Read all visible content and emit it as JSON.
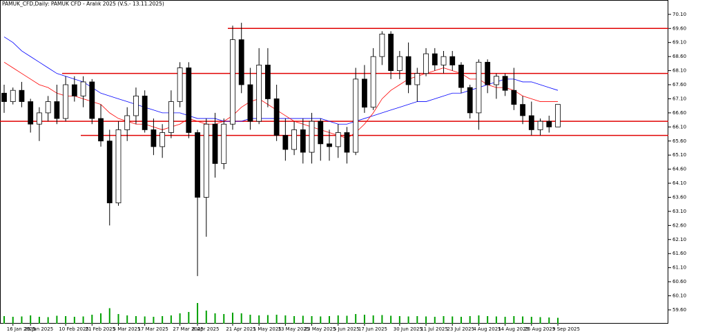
{
  "chart_data": {
    "type": "candlestick",
    "title": "PAMUK_CFD,Daily: PAMUK CFD - Aralık 2025 (V.S.- 13.11.2025)",
    "categories": [
      null,
      "16 Jan 2025",
      null,
      "29 Jan 2025",
      null,
      null,
      null,
      "10 Feb 2025",
      null,
      null,
      "21 Feb 2025",
      null,
      null,
      "5 Mar 2025",
      null,
      null,
      "17 Mar 2025",
      null,
      null,
      null,
      "27 Mar 2025",
      null,
      "8 Apr 2025",
      null,
      null,
      null,
      "21 Apr 2025",
      null,
      null,
      "1 May 2025",
      null,
      null,
      "13 May 2025",
      null,
      null,
      "23 May 2025",
      null,
      null,
      "5 Jun 2025",
      null,
      null,
      "17 Jun 2025",
      null,
      null,
      null,
      "30 Jun 2025",
      null,
      null,
      "11 Jul 2025",
      null,
      null,
      "23 Jul 2025",
      null,
      null,
      "4 Aug 2025",
      null,
      null,
      "14 Aug 2025",
      null,
      null,
      "26 Aug 2025",
      null,
      null,
      "9 Sep 2025"
    ],
    "open": [
      67.3,
      67.0,
      67.4,
      67.0,
      66.2,
      66.6,
      67.0,
      66.4,
      67.6,
      67.2,
      67.7,
      66.4,
      65.6,
      63.4,
      66.0,
      66.5,
      67.2,
      66.0,
      65.4,
      65.9,
      67.0,
      68.2,
      65.9,
      63.6,
      66.2,
      64.8,
      66.2,
      69.2,
      67.6,
      66.3,
      68.3,
      67.1,
      65.8,
      65.3,
      66.0,
      65.2,
      66.3,
      65.5,
      65.4,
      65.9,
      65.2,
      67.8,
      66.8,
      68.6,
      69.4,
      68.1,
      68.6,
      67.6,
      68.0,
      68.7,
      68.3,
      68.6,
      68.3,
      67.5,
      66.6,
      68.4,
      67.6,
      67.9,
      67.4,
      66.9,
      66.5,
      66.0,
      66.3,
      66.1
    ],
    "high": [
      67.6,
      67.5,
      67.7,
      67.1,
      66.8,
      67.2,
      67.6,
      67.9,
      67.9,
      67.9,
      67.8,
      66.9,
      66.0,
      66.3,
      66.8,
      67.5,
      67.4,
      66.4,
      66.2,
      67.4,
      68.4,
      68.4,
      66.0,
      66.4,
      66.6,
      66.4,
      69.7,
      69.8,
      68.2,
      68.9,
      68.9,
      67.6,
      66.4,
      66.3,
      66.4,
      66.6,
      66.4,
      66.0,
      66.2,
      66.1,
      68.2,
      68.3,
      68.9,
      69.5,
      69.5,
      68.8,
      69.1,
      68.2,
      68.9,
      68.9,
      68.8,
      68.8,
      68.4,
      67.6,
      68.5,
      68.5,
      68.0,
      68.0,
      68.2,
      67.2,
      67.0,
      66.4,
      66.5,
      66.9
    ],
    "low": [
      66.6,
      66.9,
      66.8,
      65.9,
      65.6,
      66.3,
      66.2,
      66.3,
      67.0,
      66.8,
      66.2,
      65.4,
      62.6,
      63.3,
      65.6,
      66.2,
      65.9,
      65.1,
      65.0,
      65.7,
      66.8,
      65.7,
      60.8,
      62.2,
      64.3,
      64.6,
      66.0,
      67.3,
      66.0,
      66.2,
      66.8,
      65.6,
      64.9,
      65.1,
      64.8,
      64.8,
      64.9,
      64.9,
      65.0,
      64.8,
      65.1,
      66.6,
      66.7,
      68.3,
      67.8,
      67.8,
      67.3,
      67.0,
      67.9,
      68.1,
      68.0,
      68.1,
      67.3,
      66.4,
      66.0,
      67.3,
      67.1,
      67.2,
      66.7,
      66.2,
      65.8,
      65.8,
      65.9,
      66.1
    ],
    "close": [
      67.0,
      67.4,
      67.0,
      66.2,
      66.6,
      67.0,
      66.4,
      67.6,
      67.2,
      67.7,
      66.4,
      65.6,
      63.4,
      66.0,
      66.5,
      67.2,
      66.0,
      65.4,
      65.9,
      67.0,
      68.2,
      65.9,
      63.6,
      66.2,
      64.8,
      66.2,
      69.2,
      67.6,
      66.3,
      68.3,
      67.1,
      65.8,
      65.3,
      66.0,
      65.2,
      66.3,
      65.5,
      65.4,
      65.9,
      65.2,
      67.8,
      66.8,
      68.6,
      69.4,
      68.1,
      68.6,
      67.6,
      68.0,
      68.7,
      68.3,
      68.6,
      68.3,
      67.5,
      66.6,
      68.4,
      67.6,
      67.9,
      67.4,
      66.9,
      66.5,
      66.0,
      66.3,
      66.1,
      66.9
    ],
    "series": [
      {
        "color": "#0000ff",
        "values": [
          69.3,
          69.1,
          68.8,
          68.6,
          68.4,
          68.2,
          68.0,
          67.9,
          67.8,
          67.7,
          67.5,
          67.3,
          67.2,
          67.1,
          67.0,
          66.9,
          66.8,
          66.7,
          66.6,
          66.6,
          66.6,
          66.5,
          66.4,
          66.4,
          66.4,
          66.3,
          66.3,
          66.3,
          66.4,
          66.4,
          66.4,
          66.4,
          66.4,
          66.4,
          66.4,
          66.4,
          66.4,
          66.3,
          66.2,
          66.2,
          66.3,
          66.4,
          66.5,
          66.6,
          66.7,
          66.8,
          66.9,
          67.0,
          67.0,
          67.1,
          67.2,
          67.3,
          67.3,
          67.4,
          67.5,
          67.6,
          67.7,
          67.8,
          67.8,
          67.7,
          67.7,
          67.6,
          67.5,
          67.4
        ]
      },
      {
        "color": "#ff0000",
        "values": [
          68.4,
          68.2,
          68.0,
          67.8,
          67.6,
          67.5,
          67.3,
          67.2,
          67.2,
          67.1,
          67.0,
          66.9,
          66.6,
          66.4,
          66.3,
          66.2,
          66.2,
          66.1,
          66.0,
          66.1,
          66.2,
          66.4,
          66.3,
          66.2,
          66.2,
          66.3,
          66.5,
          66.8,
          67.0,
          67.1,
          66.9,
          66.7,
          66.5,
          66.3,
          66.2,
          66.1,
          66.0,
          65.9,
          65.8,
          65.7,
          65.9,
          66.2,
          66.6,
          67.1,
          67.4,
          67.6,
          67.8,
          67.9,
          68.0,
          68.1,
          68.2,
          68.1,
          68.0,
          67.8,
          67.8,
          67.6,
          67.5,
          67.5,
          67.4,
          67.2,
          67.1,
          67.0,
          67.0,
          67.0
        ]
      }
    ],
    "levels": [
      69.6,
      68.0,
      66.3,
      65.8
    ],
    "level_color": "#e00000",
    "volume": [
      22,
      20,
      21,
      24,
      20,
      19,
      23,
      22,
      20,
      21,
      26,
      30,
      45,
      28,
      24,
      22,
      21,
      20,
      22,
      24,
      30,
      34,
      60,
      38,
      30,
      28,
      32,
      30,
      26,
      24,
      25,
      26,
      24,
      22,
      23,
      22,
      21,
      22,
      24,
      23,
      28,
      26,
      24,
      25,
      23,
      22,
      21,
      22,
      21,
      20,
      22,
      21,
      20,
      22,
      24,
      22,
      21,
      20,
      22,
      21,
      20,
      19,
      18,
      17
    ],
    "volume_lim": [
      0,
      100
    ],
    "volume_color": "#00a000",
    "bull_color": "#ffffff",
    "bear_color": "#000000",
    "ylim": [
      59.11,
      70.61
    ],
    "yticks": [
      {
        "value": 70.1,
        "label": "70.10"
      },
      {
        "value": 69.6,
        "label": "69.60"
      },
      {
        "value": 69.1,
        "label": "69.10"
      },
      {
        "value": 68.6,
        "label": "68.60"
      },
      {
        "value": 68.1,
        "label": "68.10"
      },
      {
        "value": 67.6,
        "label": "67.60"
      },
      {
        "value": 67.1,
        "label": "67.10"
      },
      {
        "value": 66.6,
        "label": "66.60"
      },
      {
        "value": 66.1,
        "label": "66.10"
      },
      {
        "value": 65.6,
        "label": "65.60"
      },
      {
        "value": 65.1,
        "label": "65.10"
      },
      {
        "value": 64.6,
        "label": "64.60"
      },
      {
        "value": 64.1,
        "label": "64.10"
      },
      {
        "value": 63.6,
        "label": "63.60"
      },
      {
        "value": 63.1,
        "label": "63.10"
      },
      {
        "value": 62.6,
        "label": "62.60"
      },
      {
        "value": 62.1,
        "label": "62.10"
      },
      {
        "value": 61.6,
        "label": "61.60"
      },
      {
        "value": 61.1,
        "label": "61.10"
      },
      {
        "value": 60.6,
        "label": "60.60"
      },
      {
        "value": 60.1,
        "label": "60.10"
      },
      {
        "value": 59.6,
        "label": "59.60"
      }
    ]
  }
}
